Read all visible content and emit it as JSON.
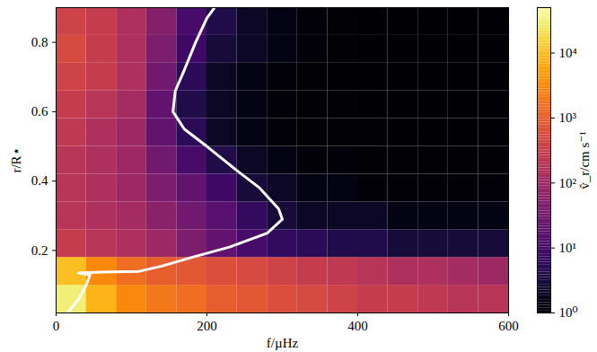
{
  "chart_data": {
    "type": "heatmap",
    "x_label": "f/µHz",
    "y_label": "r/R⋆",
    "xlim": [
      0,
      600
    ],
    "ylim": [
      0.02,
      0.9
    ],
    "xticks": [
      0,
      200,
      400,
      600
    ],
    "yticks": [
      0.2,
      0.4,
      0.6,
      0.8
    ],
    "x_edges": [
      0,
      40,
      80,
      120,
      160,
      200,
      240,
      280,
      320,
      360,
      400,
      440,
      480,
      520,
      560,
      600
    ],
    "y_edges": [
      0.02,
      0.1,
      0.18,
      0.26,
      0.34,
      0.42,
      0.5,
      0.58,
      0.66,
      0.74,
      0.82,
      0.9
    ],
    "cells": [
      [
        30000,
        8000,
        3000,
        2000,
        1500,
        1000,
        800,
        600,
        500,
        400,
        300,
        300,
        250,
        200,
        200
      ],
      [
        10000,
        3000,
        1500,
        1000,
        800,
        600,
        500,
        400,
        300,
        250,
        200,
        150,
        150,
        120,
        100
      ],
      [
        300,
        200,
        150,
        100,
        40,
        20,
        10,
        6,
        5,
        4,
        4,
        3,
        3,
        3,
        3
      ],
      [
        200,
        150,
        120,
        60,
        30,
        15,
        6,
        3,
        2,
        2,
        2,
        1.5,
        1.5,
        1.5,
        1.5
      ],
      [
        200,
        150,
        100,
        40,
        20,
        8,
        3,
        2,
        1.5,
        1.5,
        1.2,
        1.2,
        1.2,
        1.2,
        1.2
      ],
      [
        200,
        150,
        100,
        30,
        10,
        4,
        2,
        1.5,
        1.2,
        1.2,
        1.1,
        1.1,
        1.1,
        1.1,
        1.1
      ],
      [
        250,
        150,
        100,
        20,
        5,
        2,
        1.5,
        1.2,
        1.1,
        1.1,
        1.1,
        1,
        1,
        1,
        1
      ],
      [
        300,
        200,
        120,
        20,
        4,
        2,
        1.5,
        1.2,
        1.1,
        1.1,
        1,
        1,
        1,
        1,
        1
      ],
      [
        400,
        300,
        150,
        30,
        5,
        2,
        1.5,
        1.2,
        1.1,
        1,
        1,
        1,
        1,
        1,
        1
      ],
      [
        500,
        300,
        150,
        40,
        8,
        3,
        2,
        1.5,
        1.2,
        1.1,
        1,
        1,
        1,
        1,
        1
      ],
      [
        400,
        300,
        150,
        50,
        10,
        4,
        2,
        1.5,
        1.2,
        1.1,
        1,
        1,
        1,
        1,
        1
      ]
    ],
    "color": "inferno",
    "colorbar_label": "v̂_r/cm s⁻¹",
    "colorbar_range": [
      1,
      50000
    ],
    "colorbar_ticks": [
      {
        "value": 1,
        "label": "10⁰"
      },
      {
        "value": 10,
        "label": "10¹"
      },
      {
        "value": 100,
        "label": "10²"
      },
      {
        "value": 1000,
        "label": "10³"
      },
      {
        "value": 10000,
        "label": "10⁴"
      }
    ],
    "line": {
      "color": "white",
      "x": [
        15,
        30,
        40,
        45,
        30,
        60,
        110,
        140,
        180,
        230,
        280,
        300,
        295,
        270,
        240,
        200,
        170,
        155,
        158,
        170,
        185,
        200,
        210
      ],
      "y": [
        0.02,
        0.06,
        0.1,
        0.13,
        0.135,
        0.138,
        0.14,
        0.155,
        0.18,
        0.21,
        0.25,
        0.29,
        0.32,
        0.38,
        0.43,
        0.5,
        0.55,
        0.6,
        0.66,
        0.72,
        0.8,
        0.87,
        0.9
      ]
    }
  }
}
